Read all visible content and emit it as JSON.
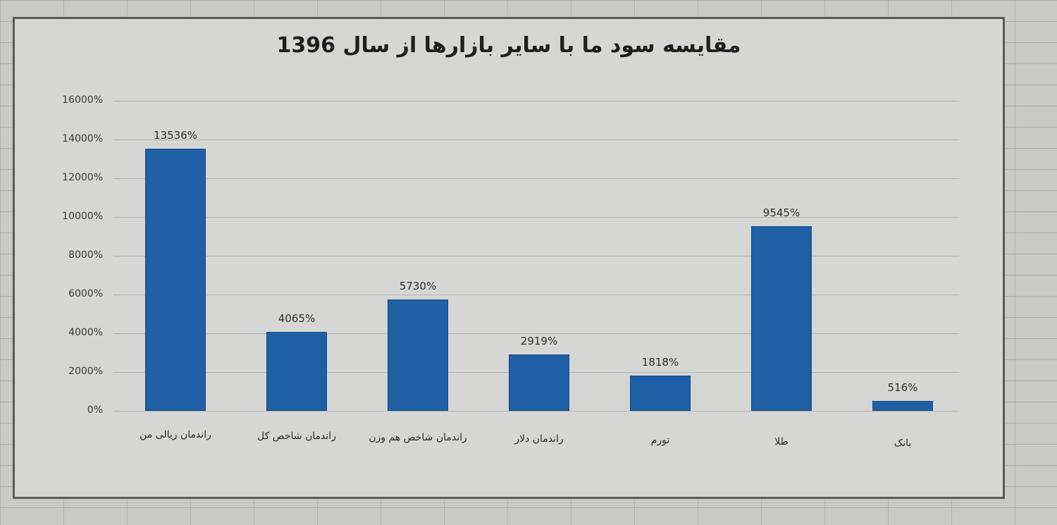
{
  "chart_data": {
    "type": "bar",
    "title": "مقایسه سود ما با سایر بازارها از سال 1396",
    "xlabel": "",
    "ylabel": "",
    "ylim": [
      0,
      16000
    ],
    "grid": true,
    "legend": "none",
    "y_ticks": [
      "0%",
      "2000%",
      "4000%",
      "6000%",
      "8000%",
      "10000%",
      "12000%",
      "14000%",
      "16000%"
    ],
    "categories": [
      "راندمان ریالی من",
      "راندمان شاخص کل",
      "راندمان شاخص هم وزن",
      "راندمان دلار",
      "تورم",
      "طلا",
      "بانک"
    ],
    "values": [
      13536,
      4065,
      5730,
      2919,
      1818,
      9545,
      516
    ],
    "value_labels": [
      "13536%",
      "4065%",
      "5730%",
      "2919%",
      "1818%",
      "9545%",
      "516%"
    ],
    "bar_color": "#1f5fa6"
  }
}
